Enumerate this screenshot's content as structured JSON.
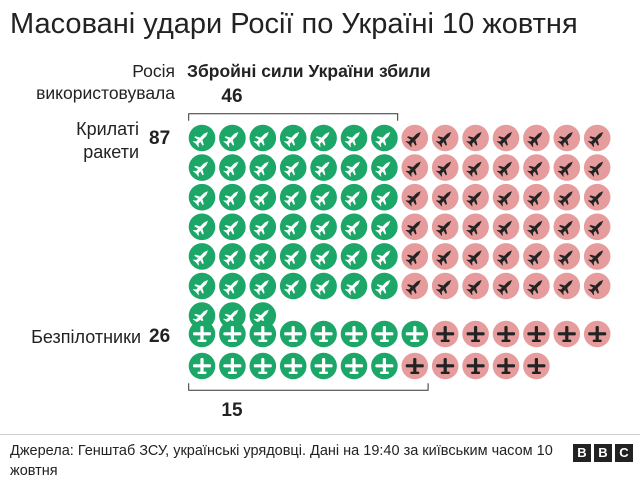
{
  "title": "Масовані удари Росії по Україні 10 жовтня",
  "column_headers": {
    "russia_used": "Росія використовувала",
    "ukraine_shot_down": "Збройні сили України збили"
  },
  "colors": {
    "shot_down": "#1ca668",
    "not_shot_down": "#e69c9c",
    "icon_on_green": "#ffffff",
    "icon_on_pink": "#222222"
  },
  "chart_data": {
    "type": "waffle",
    "title": "Масовані удари Росії по Україні 10 жовтня",
    "rows": [
      {
        "label": "Крилаті ракети",
        "total": 87,
        "total_label": "87",
        "shot_down": 46,
        "shot_down_label": "46",
        "icon": "missile-icon"
      },
      {
        "label": "Безпілотники",
        "total": 26,
        "total_label": "26",
        "shot_down": 15,
        "shot_down_label": "15",
        "icon": "drone-icon"
      }
    ]
  },
  "source": "Джерела: Генштаб ЗСУ, українські урядовці. Дані на 19:40 за київським часом 10 жовтня",
  "logo": {
    "letters": [
      "B",
      "B",
      "C"
    ]
  }
}
